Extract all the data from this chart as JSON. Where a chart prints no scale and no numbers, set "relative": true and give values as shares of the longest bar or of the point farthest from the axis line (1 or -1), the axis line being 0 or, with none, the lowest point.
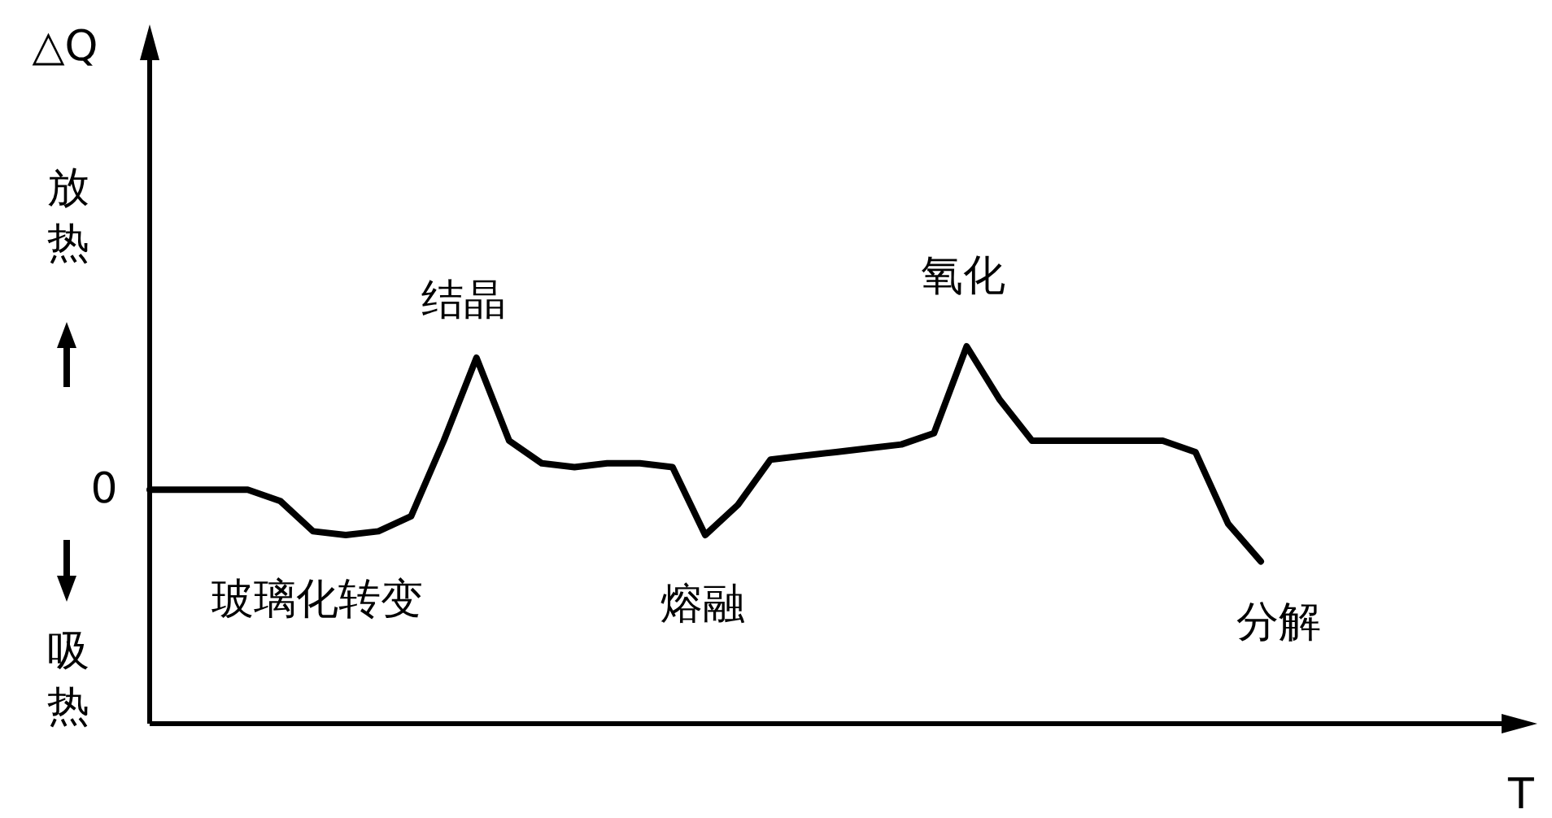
{
  "chart_data": {
    "type": "line",
    "relative": true,
    "categories": [
      null,
      null,
      null,
      null,
      null,
      null,
      null,
      null,
      null,
      null,
      null,
      null,
      null,
      null,
      null,
      null,
      null,
      null,
      null,
      null,
      null,
      null,
      null,
      null,
      null,
      null,
      null,
      null,
      null,
      null,
      null,
      null,
      null,
      null,
      null
    ],
    "series": [
      {
        "color": "#000000",
        "values": [
          0.62,
          0.62,
          0.62,
          0.62,
          0.59,
          0.51,
          0.5,
          0.51,
          0.55,
          0.75,
          0.97,
          0.75,
          0.69,
          0.68,
          0.69,
          0.69,
          0.68,
          0.5,
          0.58,
          0.7,
          0.71,
          0.72,
          0.73,
          0.74,
          0.77,
          1,
          0.86,
          0.75,
          0.75,
          0.75,
          0.75,
          0.75,
          0.72,
          0.53,
          0.43
        ]
      }
    ],
    "annotations": [
      "放热",
      "吸热",
      "0",
      "玻璃化转变",
      "结晶",
      "熔融",
      "氧化",
      "分解",
      "△Q",
      "T"
    ]
  }
}
